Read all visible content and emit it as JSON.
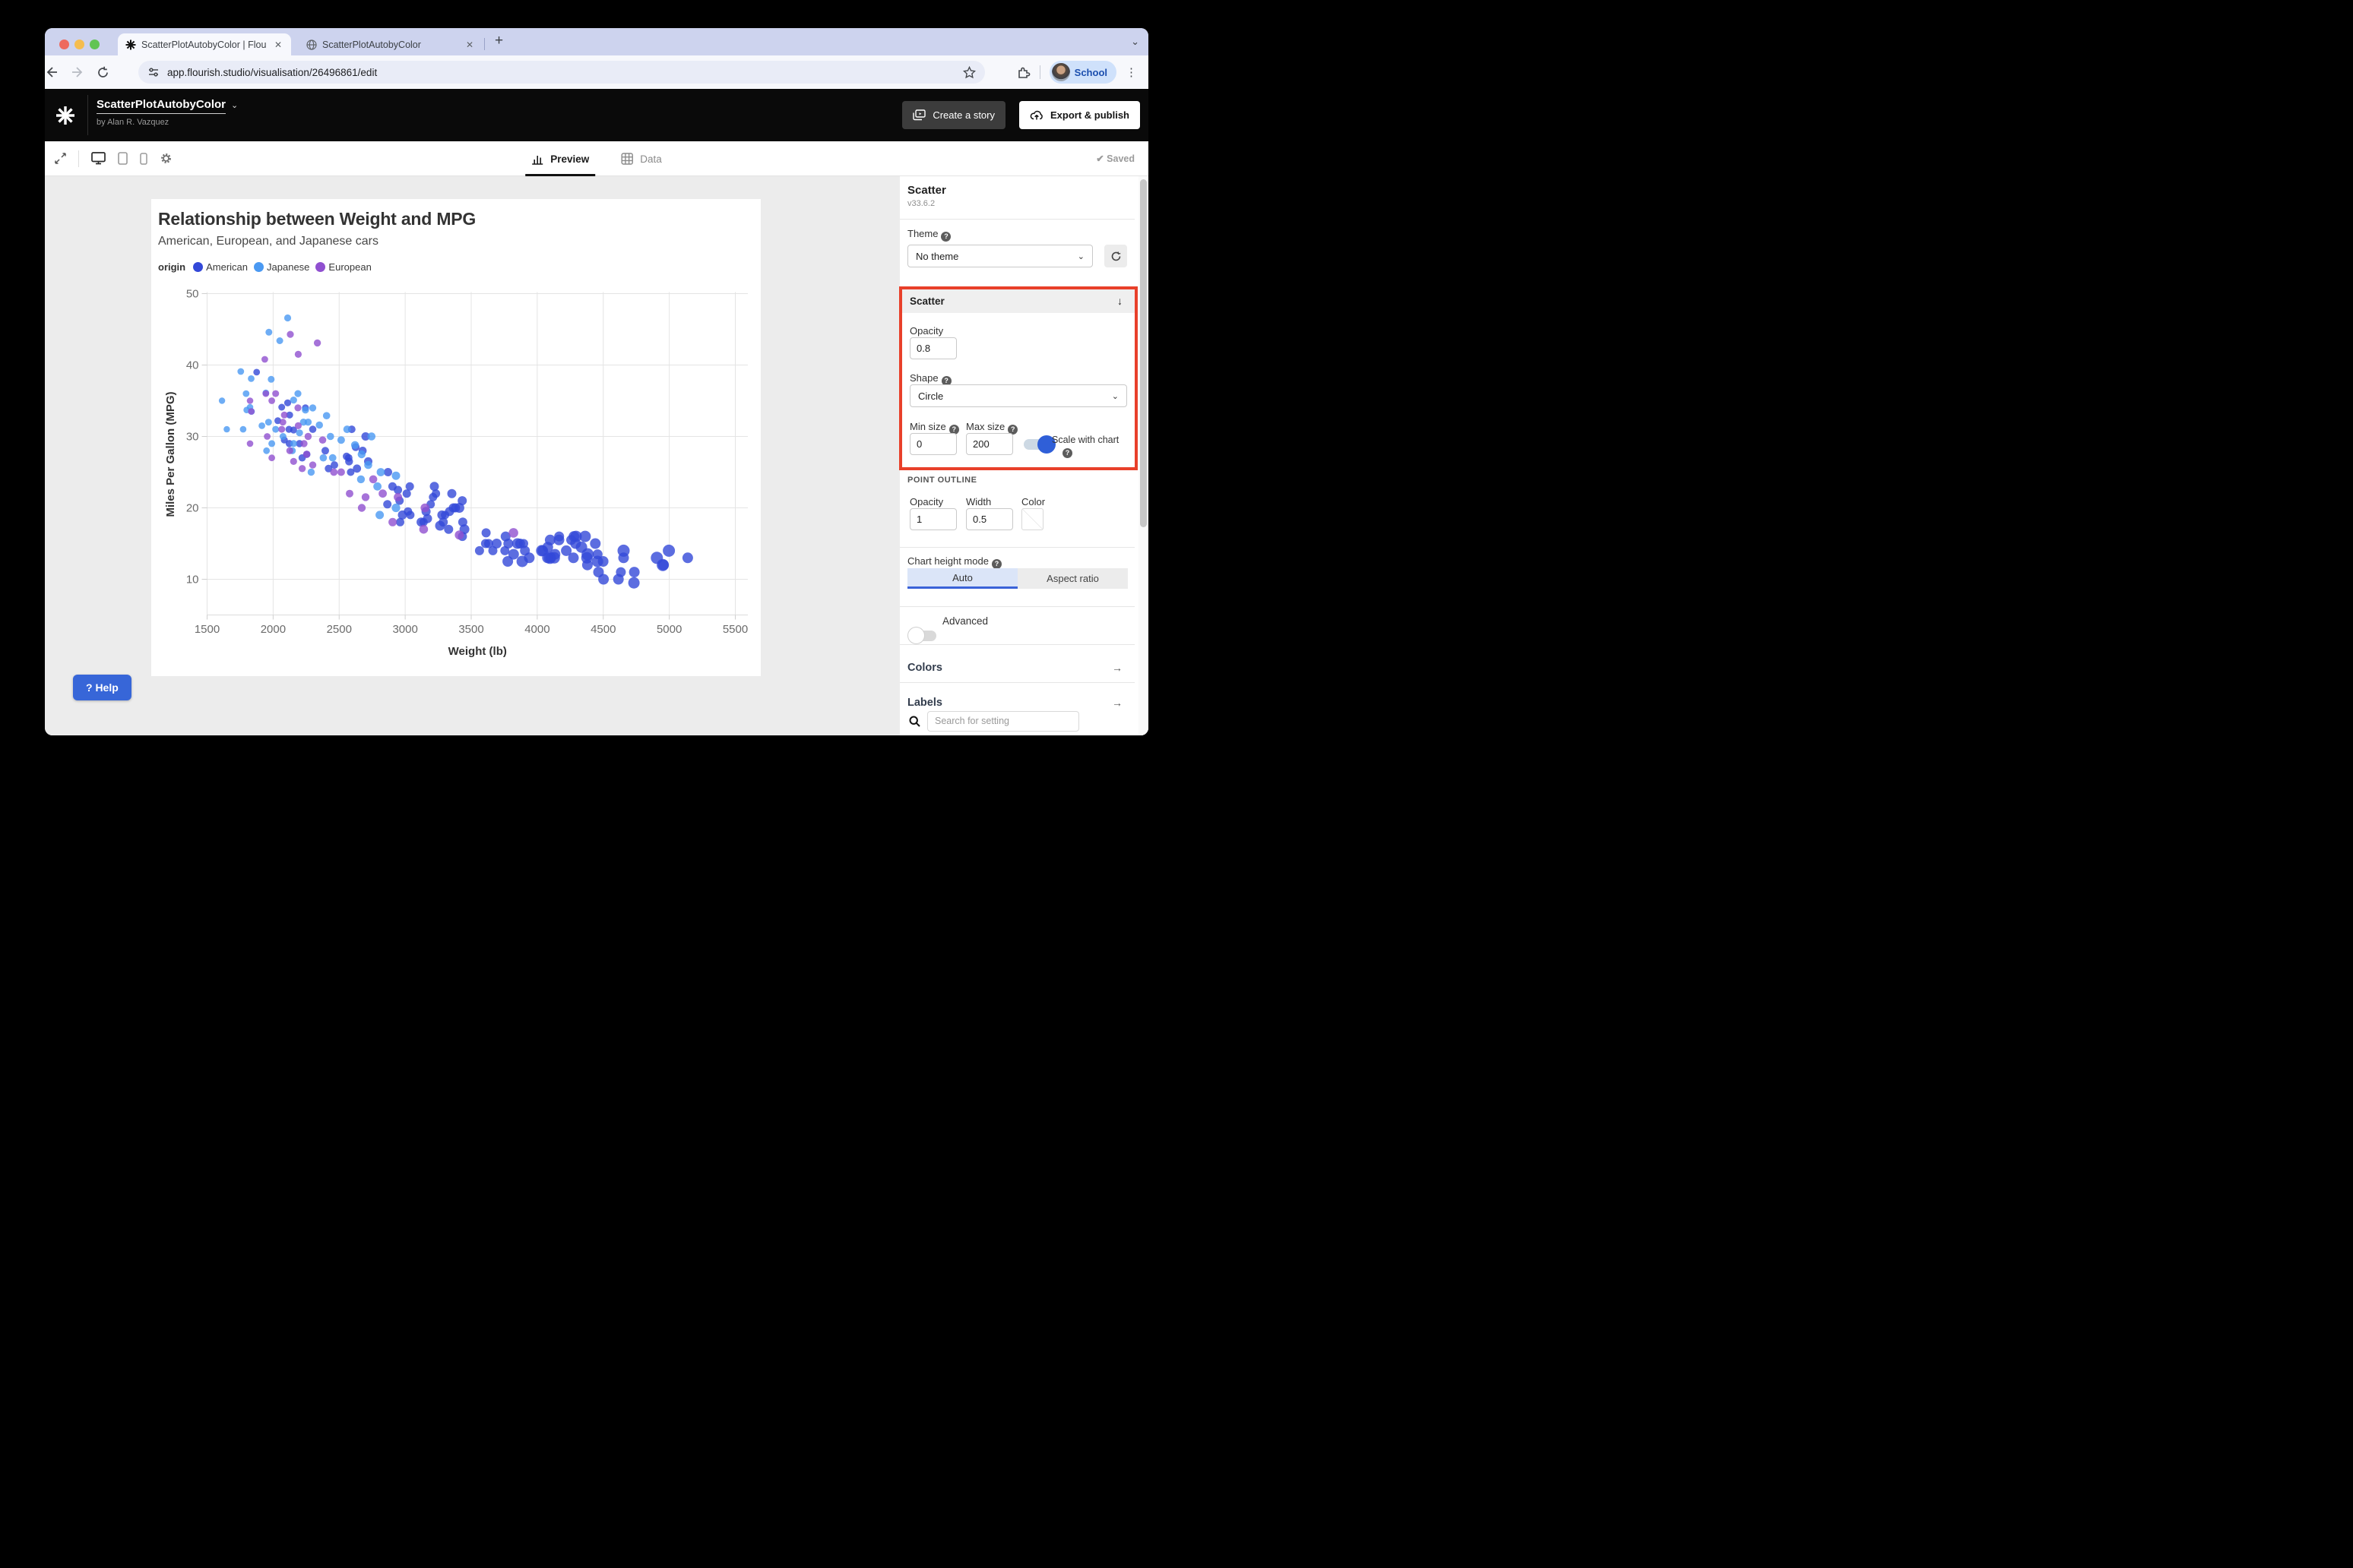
{
  "browser": {
    "tabs": [
      {
        "title": "ScatterPlotAutobyColor | Flou",
        "close": "✕"
      },
      {
        "title": "ScatterPlotAutobyColor",
        "close": "✕"
      }
    ],
    "new_tab": "+",
    "url": "app.flourish.studio/visualisation/26496861/edit",
    "profile_label": "School"
  },
  "header": {
    "project_title": "ScatterPlotAutobyColor",
    "byline": "by Alan R. Vazquez",
    "create_story": "Create a story",
    "export_publish": "Export & publish"
  },
  "toolbar": {
    "preview": "Preview",
    "data": "Data",
    "saved": "Saved",
    "check": "✔"
  },
  "chart": {
    "title": "Relationship between Weight and MPG",
    "subtitle": "American, European, and Japanese cars",
    "legend_title": "origin",
    "legend": [
      {
        "label": "American",
        "color": "#3348d8"
      },
      {
        "label": "Japanese",
        "color": "#4a99f2"
      },
      {
        "label": "European",
        "color": "#9050d0"
      }
    ],
    "x_label": "Weight (lb)",
    "y_label": "Miles Per Gallon (MPG)",
    "x_ticks": [
      1500,
      2000,
      2500,
      3000,
      3500,
      4000,
      4500,
      5000,
      5500
    ],
    "y_ticks": [
      10,
      20,
      30,
      40,
      50
    ],
    "point_opacity": 0.8,
    "colors": {
      "A": "#3348d8",
      "J": "#4a99f2",
      "E": "#9050d0"
    },
    "points": [
      [
        4732,
        9.5,
        "A",
        7.5
      ],
      [
        4955,
        12,
        "A",
        7
      ],
      [
        4951,
        12,
        "A",
        8
      ],
      [
        4997,
        14,
        "A",
        8
      ],
      [
        5140,
        13,
        "A",
        7
      ],
      [
        4906,
        13,
        "A",
        8
      ],
      [
        4654,
        13,
        "A",
        7
      ],
      [
        4499,
        12.5,
        "A",
        7
      ],
      [
        4457,
        13.5,
        "A",
        6.5
      ],
      [
        4464,
        11,
        "A",
        7
      ],
      [
        4735,
        11,
        "A",
        7
      ],
      [
        4633,
        11,
        "A",
        6.5
      ],
      [
        4502,
        10,
        "A",
        7
      ],
      [
        4456,
        12.5,
        "A",
        7.5
      ],
      [
        4615,
        10,
        "A",
        7
      ],
      [
        4376,
        13,
        "A",
        7.5
      ],
      [
        4382,
        13.5,
        "A",
        8
      ],
      [
        4380,
        12,
        "A",
        7
      ],
      [
        4274,
        13,
        "A",
        7
      ],
      [
        4100,
        13,
        "A",
        6.5
      ],
      [
        4278,
        16,
        "A",
        7
      ],
      [
        4294,
        16,
        "A",
        7.5
      ],
      [
        4135,
        13.5,
        "A",
        7
      ],
      [
        4129,
        13,
        "A",
        7.5
      ],
      [
        4096,
        13,
        "A",
        8
      ],
      [
        4042,
        14,
        "A",
        7
      ],
      [
        4034,
        14,
        "A",
        7.5
      ],
      [
        4166,
        16,
        "A",
        6.5
      ],
      [
        4290,
        15,
        "A",
        7
      ],
      [
        4335,
        14.5,
        "A",
        7.5
      ],
      [
        4220,
        14,
        "A",
        7
      ],
      [
        4080,
        14.5,
        "A",
        7
      ],
      [
        4165,
        15.5,
        "A",
        7
      ],
      [
        3907,
        14,
        "A",
        6.5
      ],
      [
        3897,
        15,
        "A",
        6
      ],
      [
        3940,
        13,
        "A",
        7
      ],
      [
        3870,
        15,
        "A",
        6.5
      ],
      [
        3755,
        14,
        "A",
        6
      ],
      [
        3821,
        13.5,
        "A",
        7
      ],
      [
        3664,
        14,
        "A",
        6
      ],
      [
        3781,
        15,
        "A",
        6.5
      ],
      [
        3632,
        15,
        "A",
        6
      ],
      [
        3613,
        16.5,
        "A",
        6
      ],
      [
        3777,
        12.5,
        "A",
        7
      ],
      [
        3693,
        15,
        "A",
        6.5
      ],
      [
        3850,
        15,
        "A",
        7
      ],
      [
        3609,
        15,
        "A",
        6
      ],
      [
        3761,
        16,
        "A",
        6.5
      ],
      [
        3563,
        14,
        "A",
        6
      ],
      [
        3886,
        12.5,
        "A",
        7.5
      ],
      [
        4098,
        15.5,
        "A",
        7
      ],
      [
        4363,
        16,
        "A",
        7.5
      ],
      [
        4440,
        15,
        "A",
        7
      ],
      [
        4257,
        15.5,
        "A",
        6.5
      ],
      [
        4654,
        14,
        "A",
        8
      ],
      [
        4077,
        13,
        "A",
        7
      ],
      [
        3436,
        18,
        "A",
        6
      ],
      [
        3433,
        16,
        "A",
        6
      ],
      [
        3449,
        17,
        "A",
        6.5
      ],
      [
        3329,
        17,
        "A",
        6
      ],
      [
        3302,
        19,
        "A",
        5.5
      ],
      [
        3288,
        18,
        "A",
        6
      ],
      [
        3139,
        18,
        "A",
        5.5
      ],
      [
        3169,
        18.5,
        "A",
        6
      ],
      [
        3158,
        19.5,
        "A",
        6
      ],
      [
        3039,
        19,
        "A",
        5.5
      ],
      [
        2962,
        18,
        "A",
        5.5
      ],
      [
        3021,
        19.5,
        "A",
        5.5
      ],
      [
        3121,
        18,
        "A",
        6
      ],
      [
        3278,
        19,
        "A",
        6
      ],
      [
        3336,
        19.5,
        "A",
        6
      ],
      [
        3432,
        21,
        "A",
        6
      ],
      [
        3410,
        20,
        "A",
        6.5
      ],
      [
        3381,
        20,
        "A",
        6
      ],
      [
        3365,
        20,
        "A",
        6
      ],
      [
        3193,
        20.5,
        "A",
        5.5
      ],
      [
        3211,
        21.5,
        "A",
        5.5
      ],
      [
        3233,
        22,
        "A",
        5.5
      ],
      [
        3353,
        22,
        "A",
        6
      ],
      [
        3012,
        22,
        "A",
        5.5
      ],
      [
        2945,
        22.5,
        "A",
        5.5
      ],
      [
        3035,
        23,
        "A",
        5.5
      ],
      [
        3221,
        23,
        "A",
        6
      ],
      [
        2904,
        23,
        "A",
        5.5
      ],
      [
        2957,
        21,
        "A",
        5.5
      ],
      [
        2865,
        20.5,
        "A",
        5.5
      ],
      [
        2979,
        19,
        "A",
        6
      ],
      [
        3264,
        17.5,
        "A",
        6.5
      ],
      [
        2587,
        25,
        "A",
        5
      ],
      [
        2464,
        26,
        "A",
        5
      ],
      [
        2220,
        27,
        "A",
        4.8
      ],
      [
        2123,
        29,
        "A",
        4.8
      ],
      [
        2625,
        28.5,
        "A",
        5.2
      ],
      [
        2720,
        26.5,
        "A",
        5.5
      ],
      [
        2572,
        27,
        "A",
        5
      ],
      [
        2255,
        27.5,
        "A",
        4.8
      ],
      [
        2300,
        31,
        "A",
        4.8
      ],
      [
        2120,
        31,
        "A",
        4.6
      ],
      [
        2110,
        34.7,
        "A",
        4.6
      ],
      [
        2065,
        34.1,
        "A",
        4.5
      ],
      [
        2595,
        31,
        "A",
        5
      ],
      [
        2700,
        30,
        "A",
        5.5
      ],
      [
        2155,
        30.9,
        "A",
        4.6
      ],
      [
        2035,
        32.2,
        "A",
        4.5
      ],
      [
        2125,
        33,
        "A",
        4.6
      ],
      [
        2245,
        34,
        "A",
        4.6
      ],
      [
        2395,
        28,
        "A",
        5
      ],
      [
        2575,
        26.5,
        "A",
        5.2
      ],
      [
        2635,
        25.5,
        "A",
        5.4
      ],
      [
        2556,
        27.2,
        "A",
        5
      ],
      [
        2678,
        28,
        "A",
        5.3
      ],
      [
        2870,
        25,
        "A",
        5.5
      ],
      [
        2420,
        25.5,
        "A",
        5
      ],
      [
        2200,
        29,
        "A",
        4.8
      ],
      [
        1875,
        39,
        "A",
        4.4
      ],
      [
        2085,
        29.5,
        "A",
        4.6
      ],
      [
        2110,
        46.6,
        "J",
        4.6
      ],
      [
        1968,
        44.6,
        "J",
        4.5
      ],
      [
        2050,
        43.4,
        "J",
        4.5
      ],
      [
        1755,
        39.1,
        "J",
        4.4
      ],
      [
        1834,
        38.1,
        "J",
        4.4
      ],
      [
        1985,
        38,
        "J",
        4.5
      ],
      [
        1945,
        36.1,
        "J",
        4.4
      ],
      [
        1795,
        36,
        "J",
        4.4
      ],
      [
        1825,
        34.1,
        "J",
        4.3
      ],
      [
        1613,
        35,
        "J",
        4.2
      ],
      [
        1649,
        31,
        "J",
        4.2
      ],
      [
        1836,
        33.5,
        "J",
        4.4
      ],
      [
        1800,
        33.7,
        "J",
        4.3
      ],
      [
        1773,
        31,
        "J",
        4.3
      ],
      [
        1965,
        32,
        "J",
        4.5
      ],
      [
        2019,
        31,
        "J",
        4.5
      ],
      [
        2155,
        35.1,
        "J",
        4.6
      ],
      [
        2245,
        33.7,
        "J",
        4.7
      ],
      [
        2265,
        32,
        "J",
        4.7
      ],
      [
        2300,
        34,
        "J",
        4.7
      ],
      [
        2350,
        31.6,
        "J",
        4.8
      ],
      [
        2405,
        32.9,
        "J",
        4.8
      ],
      [
        2434,
        30,
        "J",
        4.8
      ],
      [
        2515,
        29.5,
        "J",
        5
      ],
      [
        2620,
        28.8,
        "J",
        5.2
      ],
      [
        2670,
        27.5,
        "J",
        5.2
      ],
      [
        2720,
        26,
        "J",
        5.3
      ],
      [
        2930,
        24.5,
        "J",
        5.5
      ],
      [
        2815,
        25,
        "J",
        5.4
      ],
      [
        2745,
        30,
        "J",
        5.3
      ],
      [
        2560,
        31,
        "J",
        5
      ],
      [
        2230,
        32,
        "J",
        4.7
      ],
      [
        2200,
        30.5,
        "J",
        4.6
      ],
      [
        2155,
        29,
        "J",
        4.6
      ],
      [
        2075,
        30,
        "J",
        4.5
      ],
      [
        1990,
        29,
        "J",
        4.5
      ],
      [
        1950,
        28,
        "J",
        4.4
      ],
      [
        1915,
        31.5,
        "J",
        4.4
      ],
      [
        2145,
        28,
        "J",
        4.6
      ],
      [
        2380,
        27,
        "J",
        4.8
      ],
      [
        2451,
        27,
        "J",
        4.9
      ],
      [
        2665,
        24,
        "J",
        5.2
      ],
      [
        2790,
        23,
        "J",
        5.4
      ],
      [
        2807,
        19,
        "J",
        5.5
      ],
      [
        2930,
        20,
        "J",
        5.6
      ],
      [
        2288,
        25,
        "J",
        4.7
      ],
      [
        2188,
        36,
        "J",
        4.6
      ],
      [
        2130,
        44.3,
        "E",
        4.6
      ],
      [
        2335,
        43.1,
        "E",
        4.7
      ],
      [
        1937,
        40.8,
        "E",
        4.4
      ],
      [
        2190,
        41.5,
        "E",
        4.6
      ],
      [
        1825,
        35,
        "E",
        4.3
      ],
      [
        1945,
        36,
        "E",
        4.4
      ],
      [
        1990,
        35,
        "E",
        4.4
      ],
      [
        2085,
        33,
        "E",
        4.5
      ],
      [
        2190,
        31.5,
        "E",
        4.6
      ],
      [
        2265,
        30,
        "E",
        4.7
      ],
      [
        2375,
        29.5,
        "E",
        4.8
      ],
      [
        2234,
        29,
        "E",
        4.7
      ],
      [
        1955,
        30,
        "E",
        4.4
      ],
      [
        2126,
        28,
        "E",
        4.6
      ],
      [
        2254,
        27.5,
        "E",
        4.7
      ],
      [
        2300,
        26,
        "E",
        4.7
      ],
      [
        2065,
        31,
        "E",
        4.5
      ],
      [
        1825,
        29,
        "E",
        4.3
      ],
      [
        1990,
        27,
        "E",
        4.4
      ],
      [
        2155,
        26.5,
        "E",
        4.6
      ],
      [
        2460,
        25,
        "E",
        4.9
      ],
      [
        2515,
        25,
        "E",
        5
      ],
      [
        2220,
        25.5,
        "E",
        4.7
      ],
      [
        2830,
        22,
        "E",
        5.4
      ],
      [
        2945,
        21.5,
        "E",
        5.5
      ],
      [
        3150,
        20,
        "E",
        5.8
      ],
      [
        3140,
        17,
        "E",
        5.8
      ],
      [
        3410,
        16.2,
        "E",
        6
      ],
      [
        3820,
        16.5,
        "E",
        6.3
      ],
      [
        2905,
        18,
        "E",
        5.5
      ],
      [
        2671,
        20,
        "E",
        5.2
      ],
      [
        2758,
        24,
        "E",
        5.3
      ],
      [
        2188,
        34,
        "E",
        4.6
      ],
      [
        2019,
        36,
        "E",
        4.5
      ],
      [
        1835,
        33.5,
        "E",
        4.3
      ],
      [
        2074,
        32,
        "E",
        4.5
      ],
      [
        2700,
        21.5,
        "E",
        5.2
      ],
      [
        2579,
        22,
        "E",
        5
      ]
    ]
  },
  "help_button": "? Help",
  "sidebar": {
    "type_title": "Scatter",
    "version": "v33.6.2",
    "theme_label": "Theme",
    "theme_value": "No theme",
    "section_title": "Scatter",
    "section_arrow": "↓",
    "opacity_label": "Opacity",
    "opacity_value": "0.8",
    "shape_label": "Shape",
    "shape_value": "Circle",
    "min_size_label": "Min size",
    "min_size_value": "0",
    "max_size_label": "Max size",
    "max_size_value": "200",
    "scale_with_chart": "Scale with chart",
    "point_outline_title": "POINT OUTLINE",
    "po_opacity_label": "Opacity",
    "po_opacity_value": "1",
    "po_width_label": "Width",
    "po_width_value": "0.5",
    "po_color_label": "Color",
    "chart_height_mode": "Chart height mode",
    "mode_auto": "Auto",
    "mode_aspect": "Aspect ratio",
    "advanced_label": "Advanced",
    "colors_row": "Colors",
    "labels_row": "Labels",
    "row_arrow": "→",
    "search_placeholder": "Search for setting"
  }
}
